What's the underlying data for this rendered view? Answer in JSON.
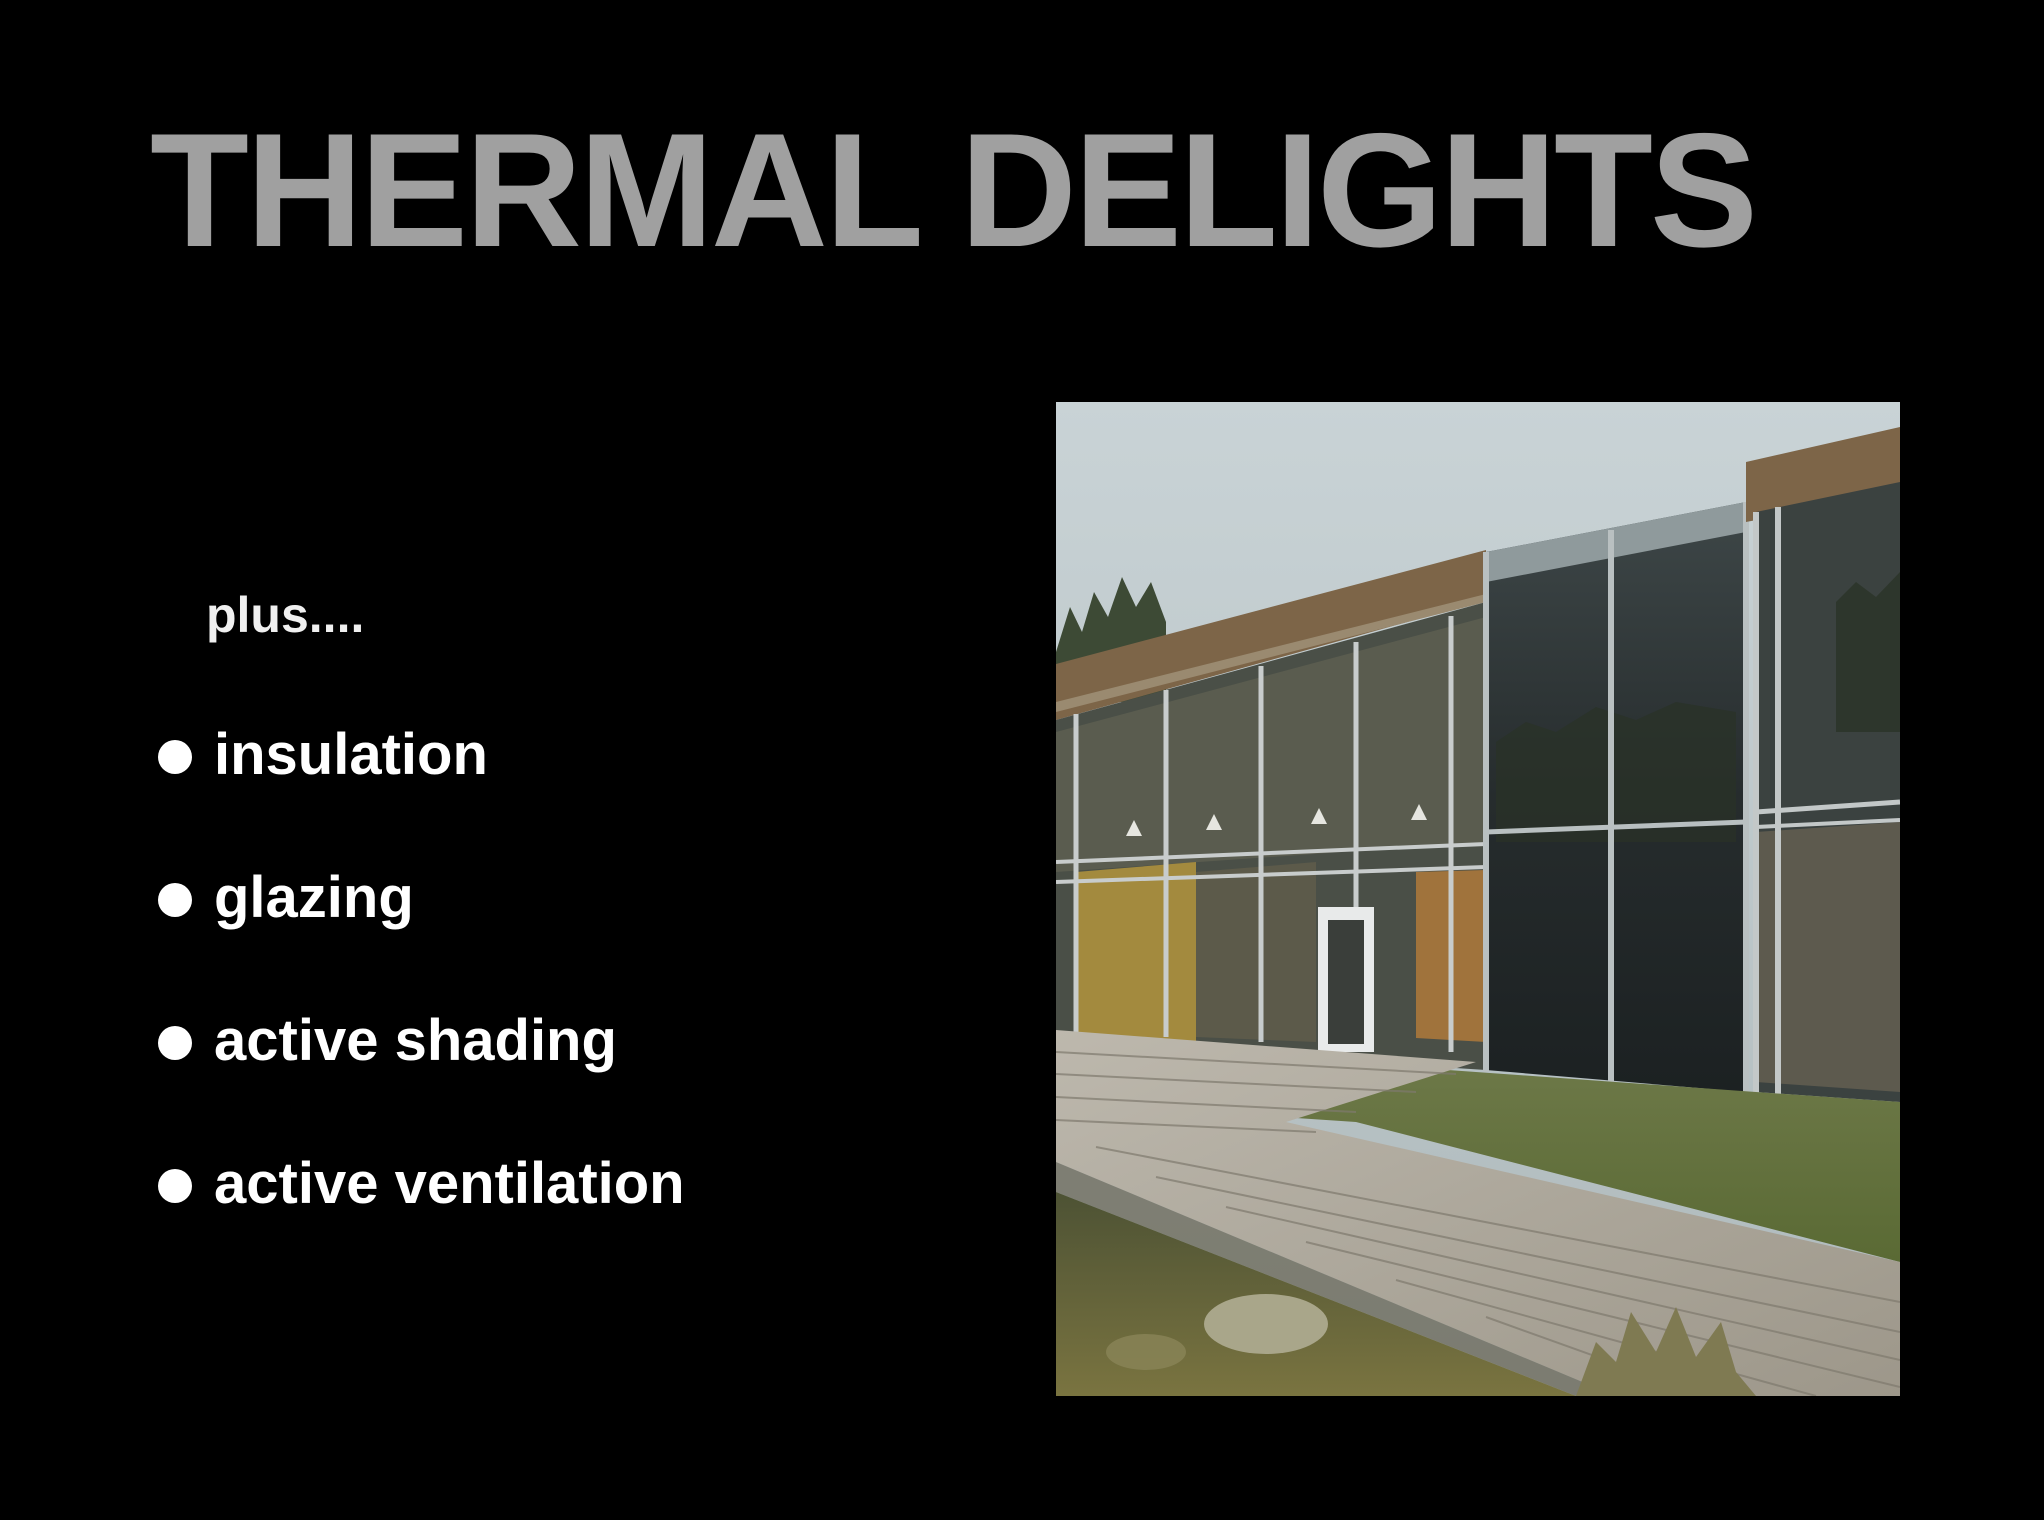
{
  "slide": {
    "title": "THERMAL DELIGHTS",
    "intro": "plus....",
    "bullets": [
      {
        "label": "insulation"
      },
      {
        "label": "glazing"
      },
      {
        "label": "active shading"
      },
      {
        "label": "active ventilation"
      }
    ],
    "photo": {
      "icon": "building-photo"
    }
  },
  "colors": {
    "background": "#000000",
    "title": "#a0a0a0",
    "text": "#ffffff"
  }
}
